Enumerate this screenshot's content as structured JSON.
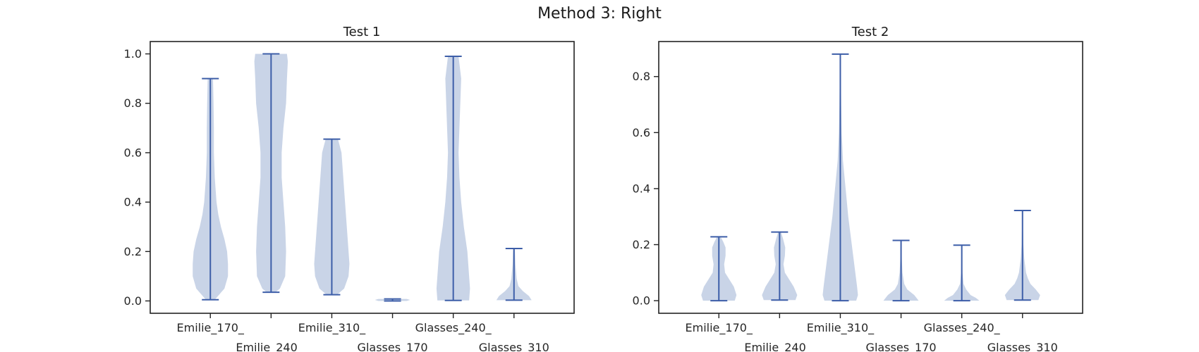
{
  "figure": {
    "suptitle": "Method 3: Right"
  },
  "colors": {
    "violin_fill": "#b0bfdc",
    "violin_line": "#3d5ea8",
    "axes": "#222222"
  },
  "chart_data": [
    {
      "type": "violin",
      "title": "Test 1",
      "xlabel": "",
      "ylabel": "",
      "ylim": [
        -0.05,
        1.05
      ],
      "yticks": [
        0.0,
        0.2,
        0.4,
        0.6,
        0.8,
        1.0
      ],
      "ytick_labels": [
        "0.0",
        "0.2",
        "0.4",
        "0.6",
        "0.8",
        "1.0"
      ],
      "categories": [
        "Emilie_170_",
        "Emilie_240_",
        "Emilie_310_",
        "Glasses_170_",
        "Glasses_240_",
        "Glasses_310_"
      ],
      "category_labels_shown": [
        "Emilie_170_",
        "Emilie_240",
        "Emilie_310_",
        "Glasses_170",
        "Glasses_240_",
        "Glasses_310"
      ],
      "grid": false,
      "violins": [
        {
          "min": 0.005,
          "max": 0.9,
          "density": [
            [
              0.005,
              0.25
            ],
            [
              0.05,
              0.8
            ],
            [
              0.1,
              1.0
            ],
            [
              0.15,
              1.0
            ],
            [
              0.2,
              0.95
            ],
            [
              0.25,
              0.8
            ],
            [
              0.3,
              0.6
            ],
            [
              0.35,
              0.45
            ],
            [
              0.4,
              0.35
            ],
            [
              0.5,
              0.25
            ],
            [
              0.6,
              0.2
            ],
            [
              0.7,
              0.2
            ],
            [
              0.8,
              0.18
            ],
            [
              0.9,
              0.15
            ]
          ]
        },
        {
          "min": 0.035,
          "max": 1.0,
          "density": [
            [
              0.035,
              0.25
            ],
            [
              0.05,
              0.5
            ],
            [
              0.1,
              0.8
            ],
            [
              0.2,
              0.85
            ],
            [
              0.3,
              0.8
            ],
            [
              0.4,
              0.7
            ],
            [
              0.5,
              0.6
            ],
            [
              0.6,
              0.6
            ],
            [
              0.7,
              0.7
            ],
            [
              0.8,
              0.85
            ],
            [
              0.9,
              0.9
            ],
            [
              0.97,
              0.95
            ],
            [
              1.0,
              0.9
            ]
          ]
        },
        {
          "min": 0.025,
          "max": 0.655,
          "density": [
            [
              0.025,
              0.3
            ],
            [
              0.05,
              0.7
            ],
            [
              0.1,
              0.95
            ],
            [
              0.15,
              1.0
            ],
            [
              0.2,
              0.95
            ],
            [
              0.3,
              0.85
            ],
            [
              0.4,
              0.75
            ],
            [
              0.5,
              0.65
            ],
            [
              0.6,
              0.55
            ],
            [
              0.655,
              0.35
            ]
          ]
        },
        {
          "min": 0.0,
          "max": 0.008,
          "density": [
            [
              0.0,
              0.8
            ],
            [
              0.004,
              1.0
            ],
            [
              0.008,
              0.8
            ]
          ]
        },
        {
          "min": 0.002,
          "max": 0.99,
          "density": [
            [
              0.002,
              0.9
            ],
            [
              0.05,
              0.95
            ],
            [
              0.1,
              0.9
            ],
            [
              0.2,
              0.8
            ],
            [
              0.3,
              0.6
            ],
            [
              0.4,
              0.45
            ],
            [
              0.5,
              0.35
            ],
            [
              0.6,
              0.3
            ],
            [
              0.7,
              0.35
            ],
            [
              0.8,
              0.4
            ],
            [
              0.9,
              0.45
            ],
            [
              0.99,
              0.3
            ]
          ]
        },
        {
          "min": 0.003,
          "max": 0.212,
          "density": [
            [
              0.003,
              1.0
            ],
            [
              0.02,
              0.85
            ],
            [
              0.04,
              0.5
            ],
            [
              0.06,
              0.25
            ],
            [
              0.09,
              0.15
            ],
            [
              0.15,
              0.08
            ],
            [
              0.212,
              0.05
            ]
          ]
        }
      ]
    },
    {
      "type": "violin",
      "title": "Test 2",
      "xlabel": "",
      "ylabel": "",
      "ylim": [
        -0.045,
        0.925
      ],
      "yticks": [
        0.0,
        0.2,
        0.4,
        0.6,
        0.8
      ],
      "ytick_labels": [
        "0.0",
        "0.2",
        "0.4",
        "0.6",
        "0.8"
      ],
      "categories": [
        "Emilie_170_",
        "Emilie_240_",
        "Emilie_310_",
        "Glasses_170_",
        "Glasses_240_",
        "Glasses_310_"
      ],
      "category_labels_shown": [
        "Emilie_170_",
        "Emilie_240",
        "Emilie_310_",
        "Glasses_170",
        "Glasses_240_",
        "Glasses_310"
      ],
      "grid": false,
      "violins": [
        {
          "min": 0.0,
          "max": 0.228,
          "density": [
            [
              0.0,
              0.9
            ],
            [
              0.02,
              1.0
            ],
            [
              0.05,
              0.85
            ],
            [
              0.08,
              0.55
            ],
            [
              0.1,
              0.35
            ],
            [
              0.13,
              0.3
            ],
            [
              0.16,
              0.38
            ],
            [
              0.19,
              0.38
            ],
            [
              0.21,
              0.25
            ],
            [
              0.228,
              0.1
            ]
          ]
        },
        {
          "min": 0.002,
          "max": 0.245,
          "density": [
            [
              0.002,
              0.9
            ],
            [
              0.02,
              1.0
            ],
            [
              0.05,
              0.8
            ],
            [
              0.08,
              0.5
            ],
            [
              0.1,
              0.3
            ],
            [
              0.13,
              0.22
            ],
            [
              0.16,
              0.3
            ],
            [
              0.19,
              0.32
            ],
            [
              0.22,
              0.2
            ],
            [
              0.245,
              0.08
            ]
          ]
        },
        {
          "min": 0.0,
          "max": 0.88,
          "density": [
            [
              0.0,
              0.9
            ],
            [
              0.02,
              1.0
            ],
            [
              0.05,
              0.95
            ],
            [
              0.1,
              0.85
            ],
            [
              0.15,
              0.75
            ],
            [
              0.2,
              0.65
            ],
            [
              0.3,
              0.45
            ],
            [
              0.4,
              0.3
            ],
            [
              0.5,
              0.15
            ],
            [
              0.6,
              0.08
            ],
            [
              0.7,
              0.05
            ],
            [
              0.8,
              0.03
            ],
            [
              0.88,
              0.02
            ]
          ]
        },
        {
          "min": 0.0,
          "max": 0.215,
          "density": [
            [
              0.0,
              1.0
            ],
            [
              0.02,
              0.75
            ],
            [
              0.04,
              0.35
            ],
            [
              0.06,
              0.18
            ],
            [
              0.1,
              0.08
            ],
            [
              0.15,
              0.04
            ],
            [
              0.215,
              0.02
            ]
          ]
        },
        {
          "min": 0.0,
          "max": 0.198,
          "density": [
            [
              0.0,
              1.0
            ],
            [
              0.01,
              0.8
            ],
            [
              0.02,
              0.5
            ],
            [
              0.04,
              0.25
            ],
            [
              0.06,
              0.1
            ],
            [
              0.1,
              0.04
            ],
            [
              0.15,
              0.02
            ],
            [
              0.198,
              0.01
            ]
          ]
        },
        {
          "min": 0.002,
          "max": 0.322,
          "density": [
            [
              0.002,
              0.9
            ],
            [
              0.02,
              1.0
            ],
            [
              0.04,
              0.75
            ],
            [
              0.06,
              0.45
            ],
            [
              0.08,
              0.3
            ],
            [
              0.1,
              0.2
            ],
            [
              0.15,
              0.1
            ],
            [
              0.2,
              0.05
            ],
            [
              0.25,
              0.03
            ],
            [
              0.322,
              0.02
            ]
          ]
        }
      ]
    }
  ]
}
